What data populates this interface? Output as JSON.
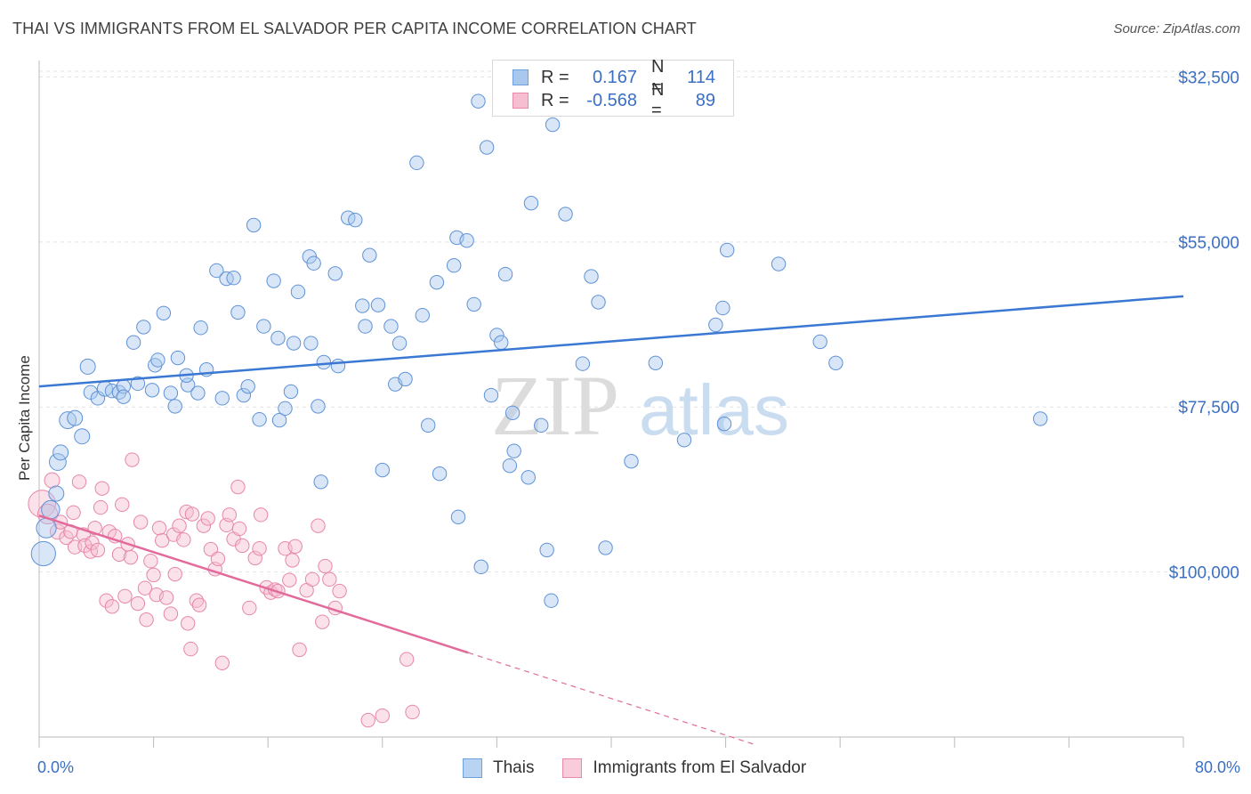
{
  "header": {
    "title": "THAI VS IMMIGRANTS FROM EL SALVADOR PER CAPITA INCOME CORRELATION CHART",
    "source": "Source: ZipAtlas.com"
  },
  "legend": {
    "rows": [
      {
        "r_label": "R =",
        "r_value": "0.167",
        "n_label": "N =",
        "n_value": "114",
        "color": "#a9c8ee",
        "border": "#6f9fdc"
      },
      {
        "r_label": "R =",
        "r_value": "-0.568",
        "n_label": "N =",
        "n_value": "89",
        "color": "#f6bfd1",
        "border": "#e98aac"
      }
    ]
  },
  "bottom_legend": [
    {
      "label": "Thais",
      "color": "#b9d3f3",
      "border": "#6f9fdc"
    },
    {
      "label": "Immigrants from El Salvador",
      "color": "#f8ccdb",
      "border": "#e98aac"
    }
  ],
  "axes": {
    "x_min_label": "0.0%",
    "x_max_label": "80.0%",
    "y_label": "Per Capita Income",
    "y_ticks": [
      "$100,000",
      "$77,500",
      "$55,000",
      "$32,500"
    ]
  },
  "watermark": {
    "part1": "ZIP",
    "part2": "atlas"
  },
  "chart_data": {
    "type": "scatter",
    "xlabel": "",
    "ylabel": "Per Capita Income",
    "xlim": [
      0,
      80
    ],
    "ylim": [
      10000,
      102000
    ],
    "y_ticks": [
      32500,
      55000,
      77500,
      100000
    ],
    "grid": true,
    "colors": {
      "thais": "#3a78d4",
      "salvador": "#e26b9b"
    },
    "series": [
      {
        "name": "Thais",
        "trend": {
          "x": [
            0,
            80
          ],
          "y": [
            57800,
            70100
          ]
        },
        "points": [
          [
            0.3,
            35000,
            1.6
          ],
          [
            0.5,
            38500,
            1.3
          ],
          [
            0.8,
            41000,
            1.2
          ],
          [
            1.2,
            43200,
            1.0
          ],
          [
            1.3,
            47500,
            1.1
          ],
          [
            1.5,
            48800,
            1.0
          ],
          [
            2.0,
            53200,
            1.1
          ],
          [
            2.5,
            53500,
            1.0
          ],
          [
            3.0,
            51000,
            1.0
          ],
          [
            3.4,
            60500,
            1.0
          ],
          [
            3.6,
            57000,
            0.9
          ],
          [
            4.1,
            56200,
            0.9
          ],
          [
            4.6,
            57500,
            1.0
          ],
          [
            5.1,
            57200,
            0.9
          ],
          [
            5.6,
            57000,
            0.9
          ],
          [
            5.9,
            57800,
            0.9
          ],
          [
            5.9,
            56400,
            0.9
          ],
          [
            6.6,
            63800,
            0.9
          ],
          [
            6.9,
            58200,
            0.9
          ],
          [
            7.3,
            65900,
            0.9
          ],
          [
            7.9,
            57300,
            0.9
          ],
          [
            8.1,
            60700,
            0.9
          ],
          [
            8.3,
            61400,
            0.9
          ],
          [
            8.7,
            67800,
            0.9
          ],
          [
            9.2,
            56900,
            0.9
          ],
          [
            9.5,
            55100,
            0.9
          ],
          [
            9.7,
            61700,
            0.9
          ],
          [
            10.4,
            58000,
            0.9
          ],
          [
            10.3,
            59300,
            0.9
          ],
          [
            11.1,
            56900,
            0.9
          ],
          [
            11.3,
            65800,
            0.9
          ],
          [
            11.7,
            60100,
            0.9
          ],
          [
            12.4,
            73600,
            0.9
          ],
          [
            12.8,
            56200,
            0.9
          ],
          [
            13.1,
            72500,
            0.9
          ],
          [
            13.6,
            72600,
            0.9
          ],
          [
            13.9,
            67900,
            0.9
          ],
          [
            14.3,
            56600,
            0.9
          ],
          [
            14.6,
            57800,
            0.9
          ],
          [
            15.0,
            79800,
            0.9
          ],
          [
            15.4,
            53300,
            0.9
          ],
          [
            15.7,
            66000,
            0.9
          ],
          [
            16.4,
            72200,
            0.9
          ],
          [
            16.7,
            64400,
            0.9
          ],
          [
            16.8,
            53200,
            0.9
          ],
          [
            17.2,
            54800,
            0.9
          ],
          [
            17.6,
            57100,
            0.9
          ],
          [
            17.8,
            63700,
            0.9
          ],
          [
            18.1,
            70700,
            0.9
          ],
          [
            18.9,
            75500,
            0.9
          ],
          [
            19.2,
            74600,
            0.9
          ],
          [
            19.0,
            63700,
            0.9
          ],
          [
            19.5,
            55100,
            0.9
          ],
          [
            19.7,
            44800,
            0.9
          ],
          [
            19.9,
            61100,
            0.9
          ],
          [
            20.7,
            73200,
            0.9
          ],
          [
            20.9,
            60600,
            0.9
          ],
          [
            21.6,
            80800,
            0.9
          ],
          [
            22.1,
            80500,
            0.9
          ],
          [
            22.6,
            68800,
            0.9
          ],
          [
            22.8,
            66000,
            0.9
          ],
          [
            23.1,
            75700,
            0.9
          ],
          [
            23.7,
            68900,
            0.9
          ],
          [
            24.0,
            46400,
            0.9
          ],
          [
            24.6,
            66000,
            0.9
          ],
          [
            24.9,
            58100,
            0.9
          ],
          [
            25.2,
            63700,
            0.9
          ],
          [
            25.6,
            58800,
            0.9
          ],
          [
            26.4,
            88300,
            0.9
          ],
          [
            26.8,
            67500,
            0.9
          ],
          [
            27.2,
            52500,
            0.9
          ],
          [
            27.8,
            72000,
            0.9
          ],
          [
            28.0,
            45900,
            0.9
          ],
          [
            29.0,
            74300,
            0.9
          ],
          [
            29.2,
            78100,
            0.9
          ],
          [
            29.3,
            40000,
            0.9
          ],
          [
            29.9,
            77700,
            0.9
          ],
          [
            30.4,
            69000,
            0.9
          ],
          [
            30.7,
            96700,
            0.9
          ],
          [
            30.9,
            33200,
            0.9
          ],
          [
            31.3,
            90400,
            0.9
          ],
          [
            31.6,
            56600,
            0.9
          ],
          [
            32.0,
            64800,
            0.9
          ],
          [
            32.3,
            63800,
            0.9
          ],
          [
            32.6,
            73100,
            0.9
          ],
          [
            32.9,
            47000,
            0.9
          ],
          [
            33.1,
            54200,
            0.9
          ],
          [
            33.2,
            49000,
            0.9
          ],
          [
            34.2,
            45400,
            0.9
          ],
          [
            34.4,
            82800,
            0.9
          ],
          [
            35.1,
            52500,
            0.9
          ],
          [
            35.5,
            35500,
            0.9
          ],
          [
            35.8,
            28600,
            0.9
          ],
          [
            35.9,
            93500,
            0.9
          ],
          [
            36.8,
            81300,
            0.9
          ],
          [
            38.0,
            60900,
            0.9
          ],
          [
            38.6,
            72800,
            0.9
          ],
          [
            39.1,
            69300,
            0.9
          ],
          [
            39.6,
            35800,
            0.9
          ],
          [
            41.4,
            47600,
            0.9
          ],
          [
            43.1,
            61000,
            0.9
          ],
          [
            45.1,
            50500,
            0.9
          ],
          [
            47.3,
            66200,
            0.9
          ],
          [
            47.8,
            68500,
            0.9
          ],
          [
            47.9,
            52700,
            0.9
          ],
          [
            48.1,
            76400,
            0.9
          ],
          [
            51.7,
            74500,
            0.9
          ],
          [
            54.6,
            63900,
            0.9
          ],
          [
            55.7,
            61000,
            0.9
          ],
          [
            70.0,
            53400,
            0.9
          ]
        ]
      },
      {
        "name": "Immigrants from El Salvador",
        "trend": {
          "x": [
            0,
            30
          ],
          "y": [
            40200,
            21500
          ]
        },
        "trend_dashed": {
          "x": [
            30,
            50
          ],
          "y": [
            21500,
            9000
          ]
        },
        "points": [
          [
            0.2,
            41800,
            1.8
          ],
          [
            0.6,
            40400,
            1.3
          ],
          [
            0.9,
            45000,
            1.0
          ],
          [
            1.3,
            38000,
            1.0
          ],
          [
            1.5,
            39300,
            0.9
          ],
          [
            1.9,
            37200,
            0.9
          ],
          [
            2.2,
            38000,
            0.9
          ],
          [
            2.4,
            40600,
            0.9
          ],
          [
            2.5,
            35900,
            0.9
          ],
          [
            2.8,
            44800,
            0.9
          ],
          [
            3.1,
            37600,
            0.9
          ],
          [
            3.2,
            36100,
            0.9
          ],
          [
            3.6,
            35300,
            0.9
          ],
          [
            3.7,
            36500,
            0.9
          ],
          [
            3.9,
            38500,
            0.9
          ],
          [
            4.1,
            35500,
            0.9
          ],
          [
            4.3,
            41300,
            0.9
          ],
          [
            4.4,
            43900,
            0.9
          ],
          [
            4.7,
            28600,
            0.9
          ],
          [
            4.9,
            38000,
            0.9
          ],
          [
            5.1,
            27800,
            0.9
          ],
          [
            5.3,
            37400,
            0.9
          ],
          [
            5.6,
            34900,
            0.9
          ],
          [
            5.8,
            41700,
            0.9
          ],
          [
            6.0,
            29200,
            0.9
          ],
          [
            6.2,
            36300,
            0.9
          ],
          [
            6.4,
            34500,
            0.9
          ],
          [
            6.5,
            47800,
            0.9
          ],
          [
            6.9,
            28200,
            0.9
          ],
          [
            7.1,
            39300,
            0.9
          ],
          [
            7.4,
            30300,
            0.9
          ],
          [
            7.5,
            26000,
            0.9
          ],
          [
            7.8,
            34000,
            0.9
          ],
          [
            8.0,
            32100,
            0.9
          ],
          [
            8.2,
            29400,
            0.9
          ],
          [
            8.4,
            38500,
            0.9
          ],
          [
            8.6,
            36800,
            0.9
          ],
          [
            8.9,
            29000,
            0.9
          ],
          [
            9.2,
            26800,
            0.9
          ],
          [
            9.4,
            37600,
            0.9
          ],
          [
            9.5,
            32200,
            0.9
          ],
          [
            9.8,
            38800,
            0.9
          ],
          [
            10.1,
            36900,
            0.9
          ],
          [
            10.3,
            40700,
            0.9
          ],
          [
            10.4,
            25500,
            0.9
          ],
          [
            10.6,
            22000,
            0.9
          ],
          [
            10.7,
            40400,
            0.9
          ],
          [
            11.0,
            28600,
            0.9
          ],
          [
            11.2,
            28000,
            0.9
          ],
          [
            11.5,
            38800,
            0.9
          ],
          [
            11.8,
            39800,
            0.9
          ],
          [
            12.0,
            35600,
            0.9
          ],
          [
            12.3,
            32900,
            0.9
          ],
          [
            12.5,
            34300,
            0.9
          ],
          [
            12.8,
            20100,
            0.9
          ],
          [
            13.1,
            38900,
            0.9
          ],
          [
            13.3,
            40300,
            0.9
          ],
          [
            13.6,
            37000,
            0.9
          ],
          [
            13.9,
            44100,
            0.9
          ],
          [
            14.0,
            38400,
            0.9
          ],
          [
            14.2,
            36100,
            0.9
          ],
          [
            14.7,
            27600,
            0.9
          ],
          [
            15.1,
            34400,
            0.9
          ],
          [
            15.4,
            35700,
            0.9
          ],
          [
            15.5,
            40300,
            0.9
          ],
          [
            15.9,
            30400,
            0.9
          ],
          [
            16.2,
            29700,
            0.9
          ],
          [
            16.5,
            30100,
            0.9
          ],
          [
            16.7,
            29900,
            0.9
          ],
          [
            17.2,
            35700,
            0.9
          ],
          [
            17.5,
            31400,
            0.9
          ],
          [
            17.7,
            34100,
            0.9
          ],
          [
            17.9,
            36000,
            0.9
          ],
          [
            18.2,
            21900,
            0.9
          ],
          [
            18.7,
            30000,
            0.9
          ],
          [
            19.1,
            31500,
            0.9
          ],
          [
            19.5,
            38800,
            0.9
          ],
          [
            19.8,
            25700,
            0.9
          ],
          [
            20.0,
            33300,
            0.9
          ],
          [
            20.3,
            31500,
            0.9
          ],
          [
            20.7,
            27600,
            0.9
          ],
          [
            21.0,
            29900,
            0.9
          ],
          [
            23.0,
            12300,
            0.9
          ],
          [
            24.0,
            12900,
            0.9
          ],
          [
            25.7,
            20600,
            0.9
          ],
          [
            26.1,
            13400,
            0.9
          ]
        ]
      }
    ]
  }
}
